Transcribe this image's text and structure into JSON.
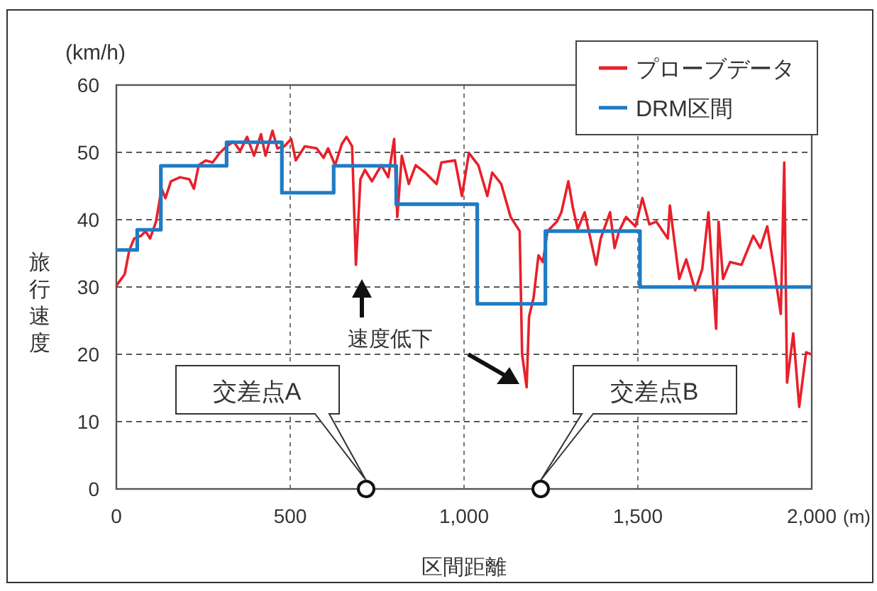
{
  "chart_data": {
    "type": "line",
    "xlabel": "区間距離",
    "ylabel": "旅行速度",
    "xlim": [
      0,
      2000
    ],
    "ylim": [
      0,
      60
    ],
    "xticks": [
      0,
      500,
      {
        "value": 1000,
        "label": "1,000"
      },
      {
        "value": 1500,
        "label": "1,500"
      },
      {
        "value": 2000,
        "label": "2,000"
      }
    ],
    "yticks": [
      0,
      10,
      20,
      30,
      40,
      50,
      60
    ],
    "grid": true,
    "legend": "top right",
    "marker": "none",
    "line_style": "solid",
    "series": [
      {
        "name": "プローブデータ",
        "type": "line",
        "color": "#e8202a",
        "x": [
          0,
          24,
          37,
          51,
          71,
          84,
          97,
          114,
          130,
          141,
          157,
          183,
          210,
          223,
          237,
          257,
          277,
          297,
          317,
          337,
          356,
          376,
          396,
          416,
          429,
          449,
          463,
          483,
          503,
          516,
          542,
          576,
          596,
          609,
          629,
          649,
          662,
          678,
          689,
          702,
          715,
          735,
          762,
          782,
          799,
          808,
          821,
          841,
          861,
          888,
          921,
          935,
          974,
          994,
          1014,
          1041,
          1067,
          1081,
          1107,
          1134,
          1160,
          1167,
          1180,
          1187,
          1200,
          1214,
          1227,
          1240,
          1267,
          1280,
          1300,
          1313,
          1327,
          1347,
          1380,
          1393,
          1420,
          1433,
          1446,
          1466,
          1493,
          1513,
          1533,
          1553,
          1586,
          1592,
          1619,
          1639,
          1665,
          1685,
          1703,
          1725,
          1732,
          1745,
          1765,
          1798,
          1832,
          1852,
          1872,
          1892,
          1911,
          1921,
          1929,
          1947,
          1964,
          1984,
          1998
        ],
        "values": [
          30.2,
          31.9,
          35.4,
          37.2,
          37.6,
          38.3,
          37.2,
          39.7,
          44.6,
          43.2,
          45.7,
          46.3,
          46.0,
          44.6,
          48.1,
          48.8,
          48.5,
          49.9,
          50.9,
          51.6,
          50.2,
          52.3,
          49.5,
          52.7,
          49.5,
          53.2,
          50.6,
          50.9,
          52.0,
          48.8,
          50.9,
          50.6,
          49.2,
          50.6,
          48.1,
          51.3,
          52.3,
          50.9,
          33.3,
          46.0,
          47.4,
          45.7,
          48.1,
          46.3,
          52.0,
          40.4,
          49.5,
          45.3,
          48.1,
          47.0,
          45.3,
          48.5,
          48.8,
          43.5,
          49.9,
          48.1,
          43.5,
          47.0,
          45.3,
          40.4,
          38.3,
          20.0,
          15.1,
          25.6,
          28.4,
          34.7,
          33.7,
          38.3,
          39.7,
          41.1,
          45.7,
          41.8,
          38.6,
          41.1,
          33.3,
          37.2,
          41.1,
          35.8,
          38.3,
          40.4,
          39.0,
          43.2,
          39.3,
          39.7,
          37.2,
          42.1,
          31.2,
          34.1,
          29.5,
          32.6,
          41.1,
          23.8,
          39.7,
          31.2,
          33.7,
          33.3,
          37.6,
          35.8,
          39.0,
          32.6,
          26.0,
          48.5,
          15.8,
          23.1,
          12.2,
          20.3,
          20.0
        ]
      },
      {
        "name": "DRM区間",
        "type": "step",
        "color": "#1f7bc4",
        "x": [
          0,
          60,
          128,
          317,
          476,
          625,
          805,
          1038,
          1234,
          1506,
          2000
        ],
        "values": [
          35.5,
          38.5,
          48,
          51.5,
          44,
          48,
          42.3,
          27.5,
          38.3,
          30,
          30
        ]
      }
    ],
    "annotations": [
      "(km/h)",
      "(m)",
      "速度低下",
      "交差点A",
      "交差点B"
    ]
  }
}
